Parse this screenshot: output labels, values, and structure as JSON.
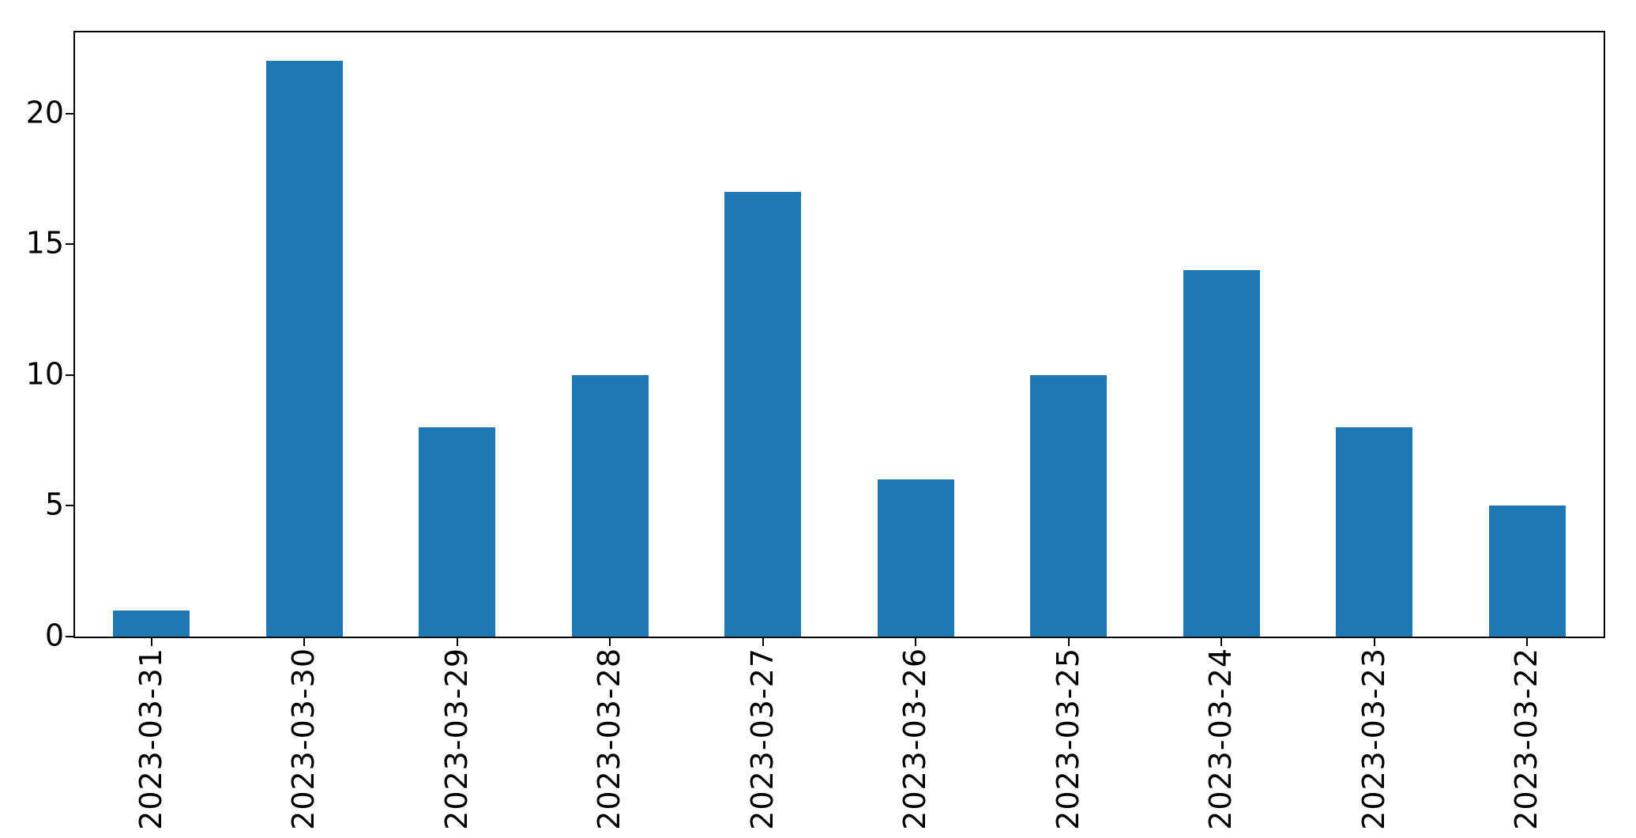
{
  "figure": {
    "background": "#ffffff"
  },
  "chart_data": {
    "type": "bar",
    "title": "",
    "xlabel": "",
    "ylabel": "",
    "categories": [
      "2023-03-31",
      "2023-03-30",
      "2023-03-29",
      "2023-03-28",
      "2023-03-27",
      "2023-03-26",
      "2023-03-25",
      "2023-03-24",
      "2023-03-23",
      "2023-03-22"
    ],
    "values": [
      1,
      22,
      8,
      10,
      17,
      6,
      10,
      14,
      8,
      5
    ],
    "yticks": [
      0,
      5,
      10,
      15,
      20
    ],
    "ylim": [
      0,
      23.1
    ],
    "bar_color": "#1f77b4",
    "axis_color": "#000000",
    "tick_label_color": "#000000",
    "x_tick_rotation_degrees": 90,
    "bar_width_fraction": 0.5,
    "grid": false,
    "legend_position": "none"
  }
}
